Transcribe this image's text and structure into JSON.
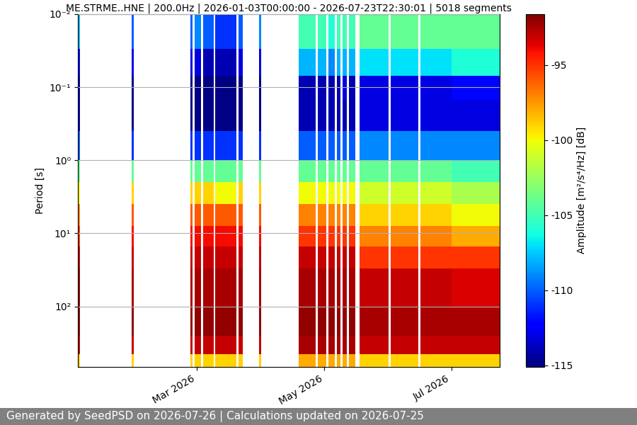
{
  "chart_data": {
    "type": "heatmap",
    "title": "ME.STRME..HNE | 200.0Hz | 2026-01-03T00:00:00 - 2026-07-23T22:30:01 | 5018 segments",
    "y_label": "Period [s]",
    "footer": "Generated by SeedPSD on 2026-07-26 | Calculations updated on 2026-07-25",
    "log": "y",
    "grid": true,
    "color": "jet",
    "xlim": [
      "2026-01-03",
      "2026-07-24"
    ],
    "xticks": [
      {
        "value": "2026-03-01",
        "label": "Mar 2026"
      },
      {
        "value": "2026-05-01",
        "label": "May 2026"
      },
      {
        "value": "2026-07-01",
        "label": "Jul 2026"
      }
    ],
    "ylim": [
      668,
      0.01
    ],
    "yticks": [
      {
        "value": 0.01,
        "label": "10⁻²"
      },
      {
        "value": 0.1,
        "label": "10⁻¹"
      },
      {
        "value": 1,
        "label": "10⁰"
      },
      {
        "value": 10,
        "label": "10¹"
      },
      {
        "value": 100,
        "label": "10²"
      }
    ],
    "x": [
      "2026-01-03",
      "2026-01-04",
      "2026-01-29",
      "2026-01-30",
      "2026-02-26",
      "2026-02-27",
      "2026-02-28",
      "2026-03-03",
      "2026-03-04",
      "2026-03-09",
      "2026-03-10",
      "2026-03-20",
      "2026-03-21",
      "2026-03-23",
      "2026-03-31",
      "2026-04-01",
      "2026-04-19",
      "2026-04-27",
      "2026-04-28",
      "2026-05-02",
      "2026-05-03",
      "2026-05-06",
      "2026-05-07",
      "2026-05-09",
      "2026-05-10",
      "2026-05-12",
      "2026-05-13",
      "2026-05-16",
      "2026-05-18",
      "2026-06-01",
      "2026-06-02",
      "2026-06-15",
      "2026-06-16",
      "2026-07-01",
      "2026-07-24"
    ],
    "period_edges": [
      0.01,
      0.03,
      0.07,
      0.15,
      0.4,
      1,
      2,
      4,
      8,
      15,
      30,
      100,
      250,
      450,
      668
    ],
    "cells": [
      [
        -108,
        -112,
        -114,
        -114,
        -110,
        -104,
        -100,
        -97,
        -95,
        -93,
        -92,
        -92,
        -93,
        -99
      ],
      null,
      [
        -110,
        -113,
        -115,
        -115,
        -111,
        -104,
        -99,
        -96,
        -94,
        -93,
        -92.5,
        -92,
        -93,
        -99
      ],
      null,
      [
        -110,
        -113,
        -115,
        -115,
        -111,
        -104,
        -99,
        -96,
        -94,
        -93,
        -92.5,
        -92,
        -93,
        -99
      ],
      null,
      [
        -109,
        -113,
        -115,
        -115,
        -111,
        -104,
        -99,
        -96,
        -94,
        -93,
        -92.5,
        -92,
        -93,
        -99
      ],
      null,
      [
        -110,
        -114,
        -115,
        -115,
        -111,
        -104,
        -99,
        -96,
        -94,
        -93,
        -92.5,
        -92,
        -93,
        -99
      ],
      null,
      [
        -111,
        -114,
        -115,
        -115,
        -111,
        -104,
        -100,
        -96,
        -94,
        -93,
        -92.5,
        -92,
        -93,
        -99
      ],
      null,
      [
        -110,
        -113,
        -115,
        -115,
        -111,
        -104,
        -99,
        -96,
        -94,
        -93,
        -92.5,
        -92,
        -93,
        -99
      ],
      null,
      [
        -109,
        -113,
        -115,
        -115,
        -111,
        -104,
        -99,
        -96,
        -94,
        -93,
        -92.5,
        -92,
        -93,
        -99
      ],
      null,
      [
        -105,
        -108,
        -114,
        -114,
        -110,
        -104,
        -100,
        -97,
        -95,
        -93,
        -92.5,
        -92,
        -92.5,
        -98
      ],
      null,
      [
        -105,
        -108,
        -114,
        -114,
        -110,
        -104,
        -100,
        -97,
        -95,
        -93,
        -92.5,
        -92,
        -92.5,
        -98
      ],
      null,
      [
        -106,
        -109,
        -114,
        -114,
        -110,
        -104,
        -100,
        -97,
        -95,
        -93,
        -92.5,
        -92,
        -92.5,
        -98
      ],
      null,
      [
        -105,
        -108,
        -114,
        -114,
        -110,
        -104,
        -100,
        -97,
        -95,
        -93,
        -92.5,
        -92,
        -92.5,
        -98
      ],
      null,
      [
        -105,
        -108,
        -113,
        -114,
        -110,
        -104,
        -100,
        -97,
        -95,
        -93,
        -92.5,
        -92,
        -92.5,
        -98
      ],
      null,
      [
        -105,
        -108,
        -114,
        -114,
        -110,
        -104,
        -100,
        -97,
        -95,
        -93,
        -92.5,
        -92,
        -92.5,
        -98
      ],
      null,
      [
        -104,
        -107,
        -113,
        -113,
        -109,
        -104,
        -101,
        -99,
        -97,
        -95,
        -93,
        -92.5,
        -93,
        -99
      ],
      null,
      [
        -104,
        -107,
        -113,
        -113,
        -109,
        -104,
        -101,
        -99,
        -97,
        -95,
        -93,
        -92.5,
        -93,
        -99
      ],
      null,
      [
        -104,
        -107,
        -113,
        -113,
        -109,
        -104,
        -101,
        -99,
        -97,
        -95,
        -93,
        -92.5,
        -93,
        -99
      ],
      [
        -104,
        -106,
        -112,
        -113,
        -109,
        -105,
        -102,
        -100,
        -98,
        -95,
        -93.5,
        -92.5,
        -93,
        -99
      ]
    ],
    "colorbar_label": "Amplitude [m²/s⁴/Hz] [dB]",
    "colorbar_range": [
      -115.1,
      -91.6
    ],
    "colorbar_ticks": [
      -95,
      -100,
      -105,
      -110,
      -115
    ]
  }
}
